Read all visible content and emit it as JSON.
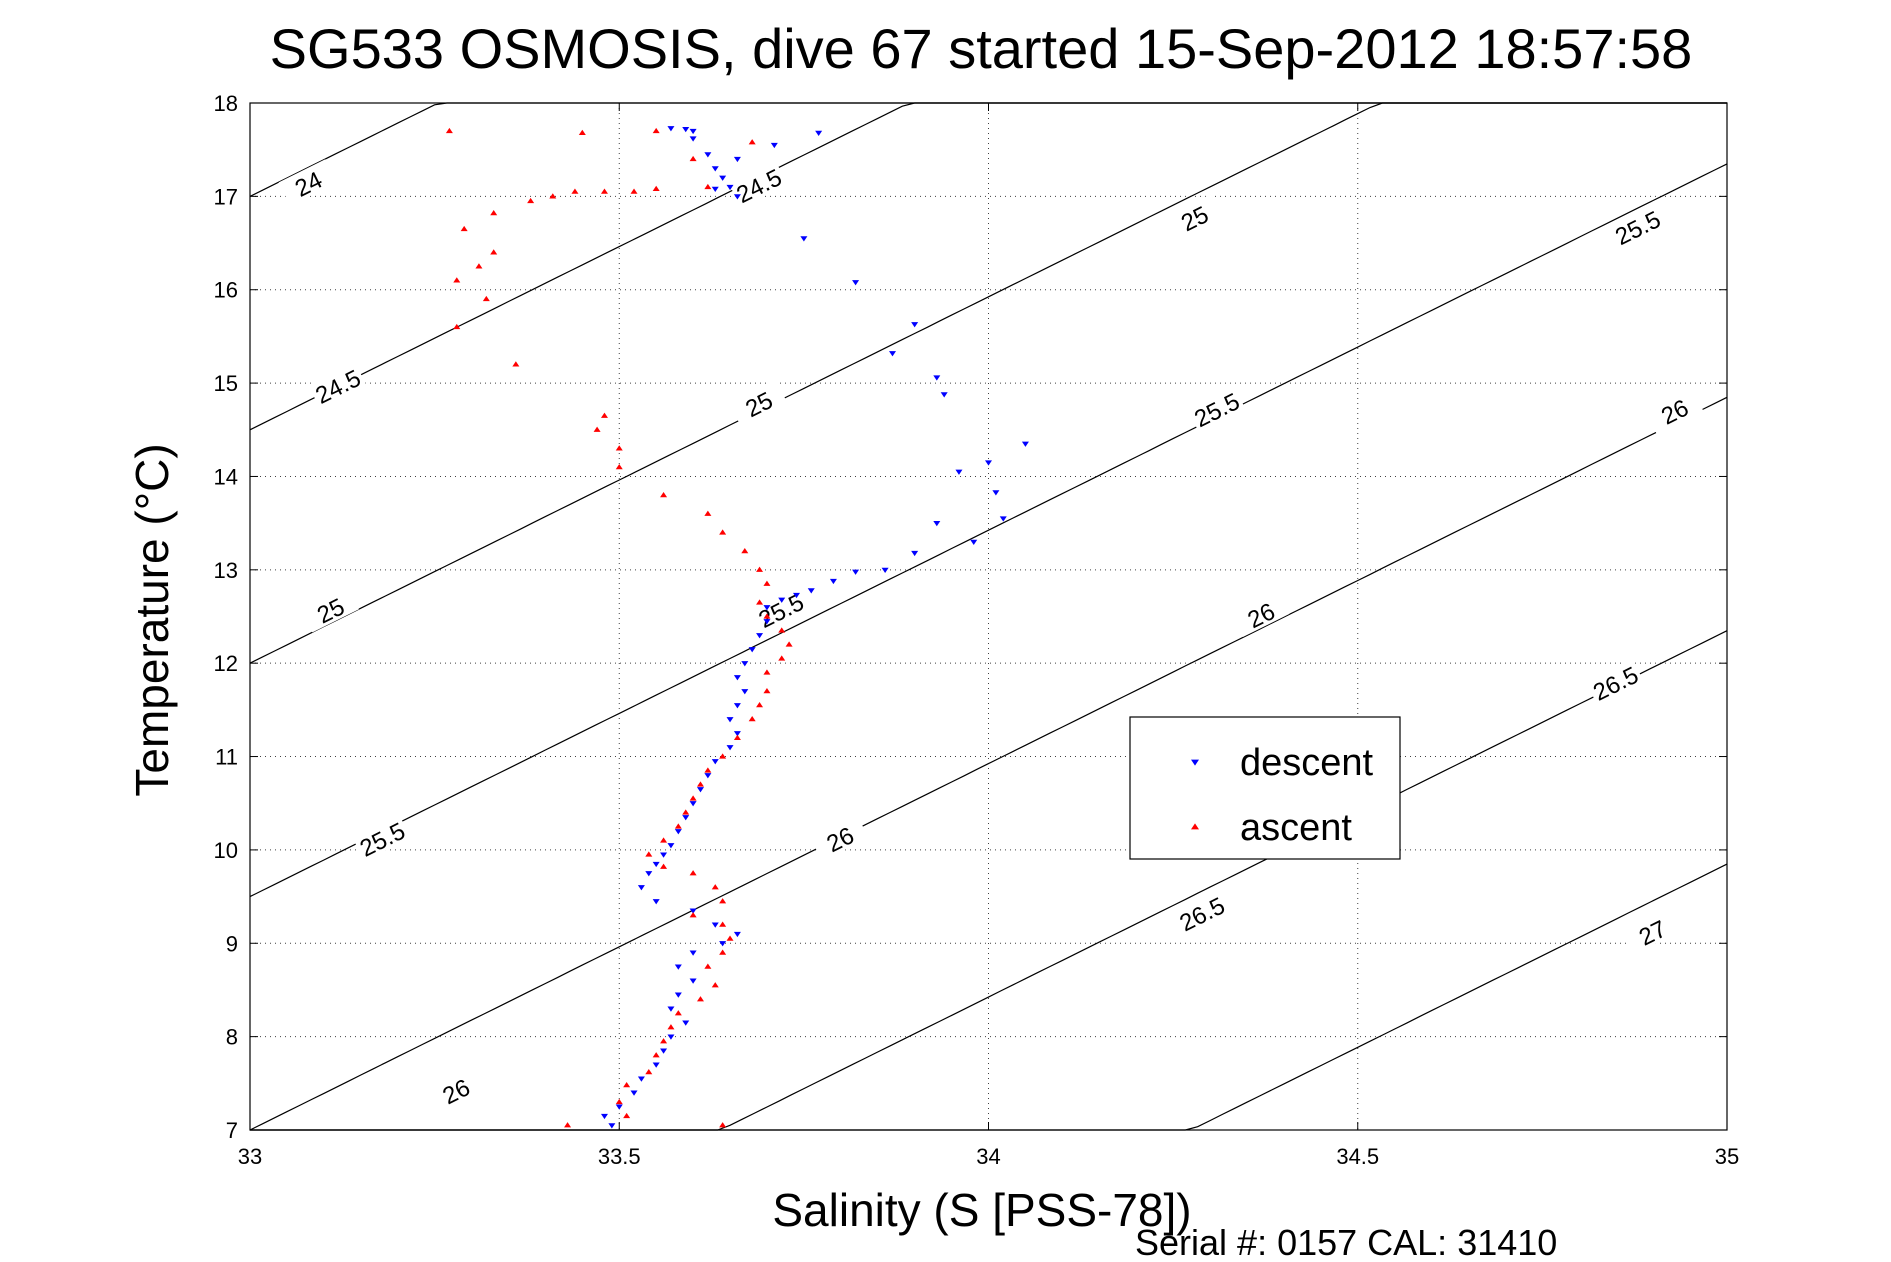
{
  "chart_data": {
    "type": "scatter",
    "title": "SG533 OSMOSIS, dive 67 started 15-Sep-2012 18:57:58",
    "xlabel": "Salinity (S [PSS-78])",
    "ylabel": "Temperature (°C)",
    "xlim": [
      33,
      35
    ],
    "ylim": [
      7,
      18
    ],
    "x_ticks": [
      "33",
      "33.5",
      "34",
      "34.5",
      "35"
    ],
    "y_ticks": [
      "7",
      "8",
      "9",
      "10",
      "11",
      "12",
      "13",
      "14",
      "15",
      "16",
      "17",
      "18"
    ],
    "grid": true,
    "legend_position": "center-right",
    "contours": [
      {
        "sigma": 24,
        "label": "24"
      },
      {
        "sigma": 24.5,
        "label": "24.5"
      },
      {
        "sigma": 25,
        "label": "25"
      },
      {
        "sigma": 25.5,
        "label": "25.5"
      },
      {
        "sigma": 26,
        "label": "26"
      },
      {
        "sigma": 26.5,
        "label": "26.5"
      },
      {
        "sigma": 27,
        "label": "27"
      }
    ],
    "contour_labels": [
      {
        "text": "24",
        "s": 33.08,
        "t": 17.12
      },
      {
        "text": "24.5",
        "s": 33.69,
        "t": 17.1
      },
      {
        "text": "24.5",
        "s": 33.12,
        "t": 14.95
      },
      {
        "text": "25",
        "s": 34.28,
        "t": 16.75
      },
      {
        "text": "25",
        "s": 33.69,
        "t": 14.76
      },
      {
        "text": "25",
        "s": 33.11,
        "t": 12.55
      },
      {
        "text": "25.5",
        "s": 34.88,
        "t": 16.65
      },
      {
        "text": "25.5",
        "s": 34.31,
        "t": 14.7
      },
      {
        "text": "25.5",
        "s": 33.72,
        "t": 12.55
      },
      {
        "text": "25.5",
        "s": 33.18,
        "t": 10.1
      },
      {
        "text": "26",
        "s": 34.93,
        "t": 14.68
      },
      {
        "text": "26",
        "s": 34.37,
        "t": 12.5
      },
      {
        "text": "26",
        "s": 33.8,
        "t": 10.1
      },
      {
        "text": "26",
        "s": 33.28,
        "t": 7.4
      },
      {
        "text": "26.5",
        "s": 34.85,
        "t": 11.77
      },
      {
        "text": "26.5",
        "s": 34.29,
        "t": 9.3
      },
      {
        "text": "27",
        "s": 34.9,
        "t": 9.1
      }
    ],
    "series": [
      {
        "name": "descent",
        "color": "#0000ff",
        "marker": "triangle-down",
        "points": [
          [
            33.57,
            17.73
          ],
          [
            33.59,
            17.72
          ],
          [
            33.6,
            17.7
          ],
          [
            33.6,
            17.62
          ],
          [
            33.62,
            17.45
          ],
          [
            33.63,
            17.3
          ],
          [
            33.64,
            17.2
          ],
          [
            33.65,
            17.1
          ],
          [
            33.66,
            17.0
          ],
          [
            33.63,
            17.08
          ],
          [
            33.66,
            17.4
          ],
          [
            33.71,
            17.55
          ],
          [
            33.77,
            17.68
          ],
          [
            33.75,
            16.55
          ],
          [
            33.82,
            16.08
          ],
          [
            33.9,
            15.63
          ],
          [
            33.87,
            15.32
          ],
          [
            33.93,
            15.06
          ],
          [
            33.94,
            14.88
          ],
          [
            34.05,
            14.35
          ],
          [
            34.0,
            14.15
          ],
          [
            33.96,
            14.05
          ],
          [
            34.01,
            13.83
          ],
          [
            34.02,
            13.55
          ],
          [
            33.93,
            13.5
          ],
          [
            33.98,
            13.3
          ],
          [
            33.9,
            13.18
          ],
          [
            33.86,
            13.0
          ],
          [
            33.82,
            12.98
          ],
          [
            33.79,
            12.88
          ],
          [
            33.76,
            12.78
          ],
          [
            33.74,
            12.73
          ],
          [
            33.72,
            12.68
          ],
          [
            33.7,
            12.6
          ],
          [
            33.7,
            12.45
          ],
          [
            33.69,
            12.3
          ],
          [
            33.68,
            12.15
          ],
          [
            33.67,
            12.0
          ],
          [
            33.66,
            11.85
          ],
          [
            33.67,
            11.7
          ],
          [
            33.66,
            11.55
          ],
          [
            33.65,
            11.4
          ],
          [
            33.66,
            11.25
          ],
          [
            33.65,
            11.1
          ],
          [
            33.63,
            10.95
          ],
          [
            33.62,
            10.8
          ],
          [
            33.61,
            10.65
          ],
          [
            33.6,
            10.5
          ],
          [
            33.59,
            10.35
          ],
          [
            33.58,
            10.2
          ],
          [
            33.57,
            10.05
          ],
          [
            33.56,
            9.95
          ],
          [
            33.55,
            9.85
          ],
          [
            33.54,
            9.75
          ],
          [
            33.53,
            9.6
          ],
          [
            33.55,
            9.45
          ],
          [
            33.6,
            9.35
          ],
          [
            33.63,
            9.2
          ],
          [
            33.66,
            9.1
          ],
          [
            33.64,
            9.0
          ],
          [
            33.6,
            8.9
          ],
          [
            33.58,
            8.75
          ],
          [
            33.6,
            8.6
          ],
          [
            33.58,
            8.45
          ],
          [
            33.57,
            8.3
          ],
          [
            33.59,
            8.15
          ],
          [
            33.57,
            8.0
          ],
          [
            33.56,
            7.85
          ],
          [
            33.55,
            7.7
          ],
          [
            33.53,
            7.55
          ],
          [
            33.52,
            7.4
          ],
          [
            33.5,
            7.25
          ],
          [
            33.48,
            7.15
          ],
          [
            33.49,
            7.05
          ]
        ]
      },
      {
        "name": "ascent",
        "color": "#ff0000",
        "marker": "triangle-up",
        "points": [
          [
            33.27,
            17.7
          ],
          [
            33.45,
            17.68
          ],
          [
            33.48,
            17.05
          ],
          [
            33.44,
            17.05
          ],
          [
            33.41,
            17.0
          ],
          [
            33.38,
            16.95
          ],
          [
            33.33,
            16.82
          ],
          [
            33.29,
            16.65
          ],
          [
            33.33,
            16.4
          ],
          [
            33.31,
            16.25
          ],
          [
            33.28,
            16.1
          ],
          [
            33.32,
            15.9
          ],
          [
            33.28,
            15.6
          ],
          [
            33.36,
            15.2
          ],
          [
            33.48,
            14.65
          ],
          [
            33.47,
            14.5
          ],
          [
            33.5,
            14.3
          ],
          [
            33.5,
            14.1
          ],
          [
            33.56,
            13.8
          ],
          [
            33.62,
            13.6
          ],
          [
            33.64,
            13.4
          ],
          [
            33.67,
            13.2
          ],
          [
            33.69,
            13.0
          ],
          [
            33.7,
            12.85
          ],
          [
            33.69,
            12.65
          ],
          [
            33.7,
            12.5
          ],
          [
            33.72,
            12.35
          ],
          [
            33.73,
            12.2
          ],
          [
            33.72,
            12.05
          ],
          [
            33.7,
            11.9
          ],
          [
            33.7,
            11.7
          ],
          [
            33.69,
            11.55
          ],
          [
            33.68,
            11.4
          ],
          [
            33.66,
            11.2
          ],
          [
            33.64,
            11.0
          ],
          [
            33.62,
            10.85
          ],
          [
            33.61,
            10.7
          ],
          [
            33.6,
            10.55
          ],
          [
            33.59,
            10.4
          ],
          [
            33.58,
            10.25
          ],
          [
            33.56,
            10.1
          ],
          [
            33.54,
            9.95
          ],
          [
            33.56,
            9.82
          ],
          [
            33.6,
            9.75
          ],
          [
            33.63,
            9.6
          ],
          [
            33.64,
            9.45
          ],
          [
            33.6,
            9.3
          ],
          [
            33.64,
            9.2
          ],
          [
            33.65,
            9.05
          ],
          [
            33.64,
            8.9
          ],
          [
            33.62,
            8.75
          ],
          [
            33.63,
            8.55
          ],
          [
            33.61,
            8.4
          ],
          [
            33.58,
            8.25
          ],
          [
            33.57,
            8.1
          ],
          [
            33.56,
            7.95
          ],
          [
            33.55,
            7.8
          ],
          [
            33.54,
            7.62
          ],
          [
            33.51,
            7.48
          ],
          [
            33.5,
            7.3
          ],
          [
            33.51,
            7.15
          ],
          [
            33.64,
            7.05
          ],
          [
            33.43,
            7.05
          ],
          [
            33.55,
            17.7
          ],
          [
            33.6,
            17.4
          ],
          [
            33.62,
            17.1
          ],
          [
            33.52,
            17.05
          ],
          [
            33.55,
            17.08
          ],
          [
            33.68,
            17.58
          ]
        ]
      }
    ]
  },
  "legend": {
    "descent": "descent",
    "ascent": "ascent"
  },
  "footer": {
    "serial": "Serial #: 0157  CAL: 31410"
  }
}
